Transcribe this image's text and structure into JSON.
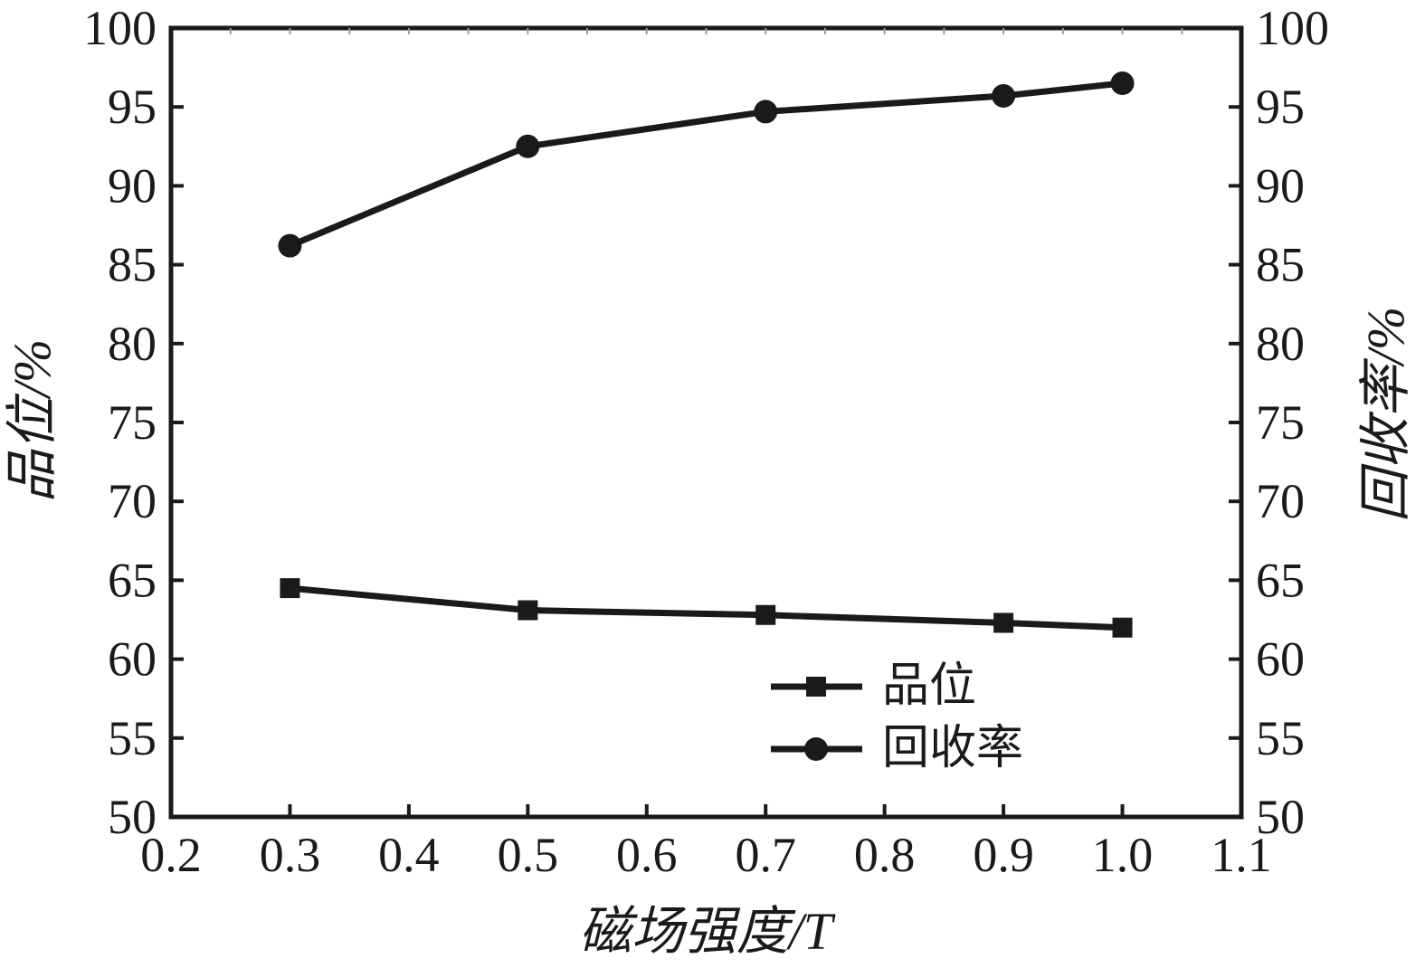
{
  "figure": {
    "background": "#ffffff",
    "ink_color": "#1a1a1a",
    "minor_tick_color": "#9a9a9a"
  },
  "chart_data": {
    "type": "line",
    "title": "",
    "xlabel": "磁场强度/T",
    "ylabel_left": "品位/%",
    "ylabel_right": "回收率/%",
    "xlim": [
      0.2,
      1.1
    ],
    "xticks": [
      0.2,
      0.3,
      0.4,
      0.5,
      0.6,
      0.7,
      0.8,
      0.9,
      1.0,
      1.1
    ],
    "xtick_labels": [
      "0.2",
      "0.3",
      "0.4",
      "0.5",
      "0.6",
      "0.7",
      "0.8",
      "0.9",
      "1.0",
      "1.1"
    ],
    "x_minor_step": 0.05,
    "ylim": [
      50,
      100
    ],
    "yticks": [
      50,
      55,
      60,
      65,
      70,
      75,
      80,
      85,
      90,
      95,
      100
    ],
    "ytick_labels": [
      "50",
      "55",
      "60",
      "65",
      "70",
      "75",
      "80",
      "85",
      "90",
      "95",
      "100"
    ],
    "grid": false,
    "legend_position": "inside-bottom-right",
    "x": [
      0.3,
      0.5,
      0.7,
      0.9,
      1.0
    ],
    "series": [
      {
        "name": "品位",
        "axis": "left",
        "marker": "square",
        "values": [
          64.5,
          63.1,
          62.8,
          62.3,
          62.0
        ]
      },
      {
        "name": "回收率",
        "axis": "right",
        "marker": "circle",
        "values": [
          86.2,
          92.5,
          94.7,
          95.7,
          96.5
        ]
      }
    ]
  }
}
